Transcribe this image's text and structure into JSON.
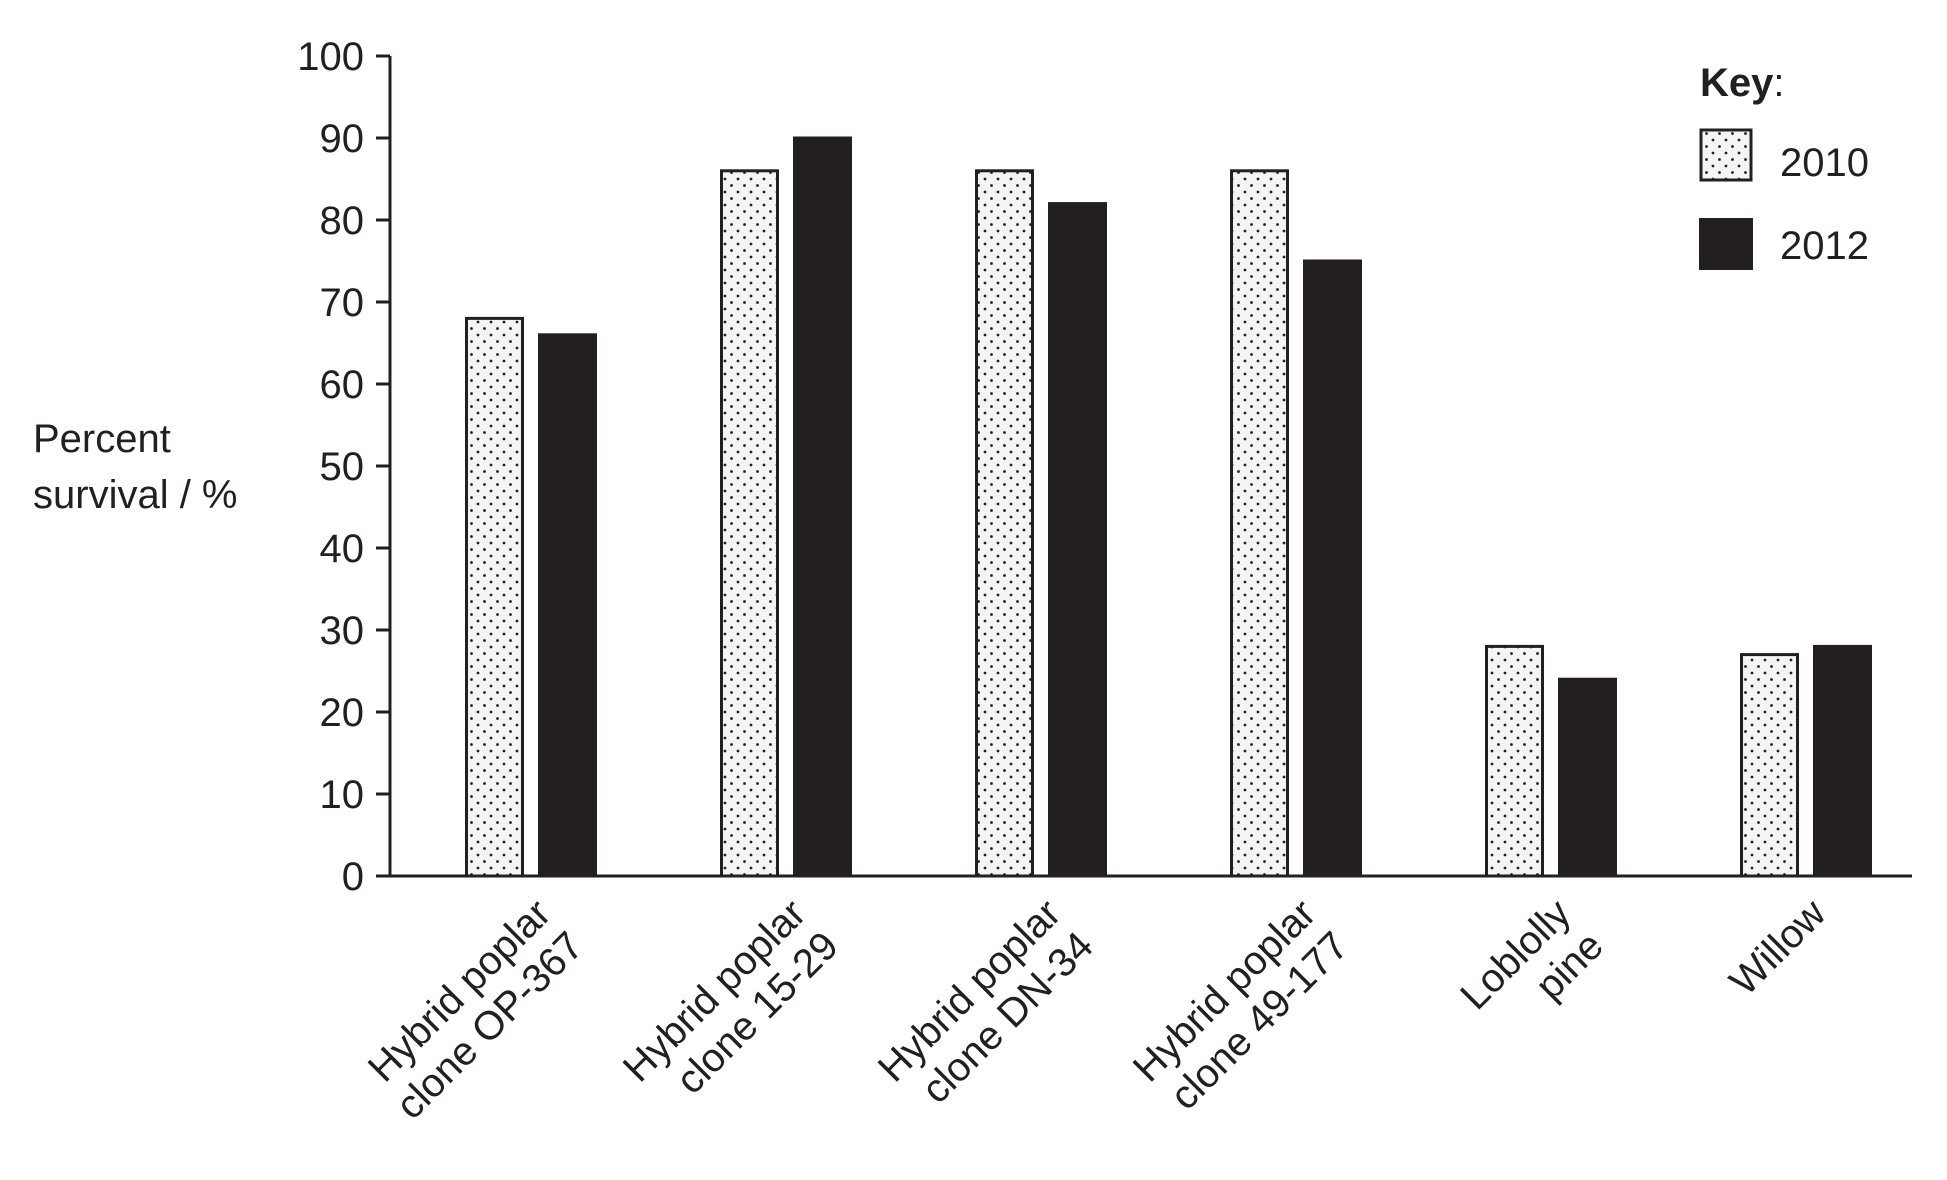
{
  "chart_data": {
    "type": "bar",
    "ylabel": [
      "Percent",
      "survival / %"
    ],
    "xlabel": "",
    "ylim": [
      0,
      100
    ],
    "yticks": [
      0,
      10,
      20,
      30,
      40,
      50,
      60,
      70,
      80,
      90,
      100
    ],
    "categories": [
      [
        "Hybrid poplar",
        "clone OP-367"
      ],
      [
        "Hybrid poplar",
        "clone 15-29"
      ],
      [
        "Hybrid poplar",
        "clone DN-34"
      ],
      [
        "Hybrid poplar",
        "clone 49-177"
      ],
      [
        "Loblolly",
        "pine"
      ],
      [
        "Willow"
      ]
    ],
    "series": [
      {
        "name": "2010",
        "pattern": "dotted",
        "values": [
          68,
          86,
          86,
          86,
          28,
          27
        ]
      },
      {
        "name": "2012",
        "pattern": "solid",
        "values": [
          66,
          90,
          82,
          75,
          24,
          28
        ]
      }
    ],
    "legend": {
      "title": "Key",
      "separator": ":",
      "placement": "top-right"
    },
    "grid": false,
    "colors": {
      "ink": "#231f20",
      "fill_light": "#f4f4f4",
      "fill_dark": "#231f20"
    }
  }
}
